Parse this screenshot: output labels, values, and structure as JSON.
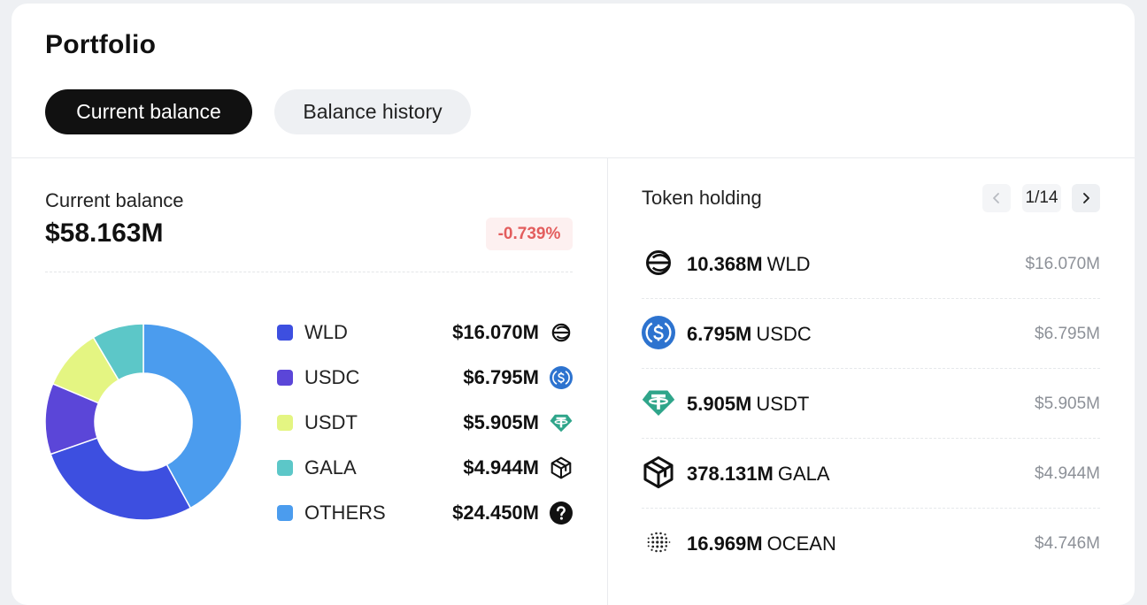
{
  "title": "Portfolio",
  "tabs": [
    {
      "label": "Current balance",
      "active": true
    },
    {
      "label": "Balance history",
      "active": false
    }
  ],
  "balance": {
    "label": "Current balance",
    "value": "$58.163M",
    "change": "-0.739%"
  },
  "colors": {
    "WLD": "#3d4fe0",
    "USDC": "#5b46d8",
    "USDT": "#e4f582",
    "GALA": "#5cc7c8",
    "OTHERS": "#4b9cee",
    "negative": "#e35d5d"
  },
  "chart_data": {
    "type": "pie",
    "categories": [
      "WLD",
      "USDC",
      "USDT",
      "GALA",
      "OTHERS"
    ],
    "values": [
      16.07,
      6.795,
      5.905,
      4.944,
      24.45
    ]
  },
  "legend": [
    {
      "name": "WLD",
      "value": "$16.070M",
      "icon": "worldcoin-icon"
    },
    {
      "name": "USDC",
      "value": "$6.795M",
      "icon": "usdc-icon"
    },
    {
      "name": "USDT",
      "value": "$5.905M",
      "icon": "tether-icon"
    },
    {
      "name": "GALA",
      "value": "$4.944M",
      "icon": "gala-icon"
    },
    {
      "name": "OTHERS",
      "value": "$24.450M",
      "icon": "question-icon"
    }
  ],
  "token_holding": {
    "title": "Token holding",
    "page": "1/14",
    "items": [
      {
        "amount": "10.368M",
        "symbol": "WLD",
        "value": "$16.070M",
        "icon": "worldcoin-icon"
      },
      {
        "amount": "6.795M",
        "symbol": "USDC",
        "value": "$6.795M",
        "icon": "usdc-icon"
      },
      {
        "amount": "5.905M",
        "symbol": "USDT",
        "value": "$5.905M",
        "icon": "tether-icon"
      },
      {
        "amount": "378.131M",
        "symbol": "GALA",
        "value": "$4.944M",
        "icon": "gala-icon"
      },
      {
        "amount": "16.969M",
        "symbol": "OCEAN",
        "value": "$4.746M",
        "icon": "ocean-icon"
      }
    ]
  }
}
